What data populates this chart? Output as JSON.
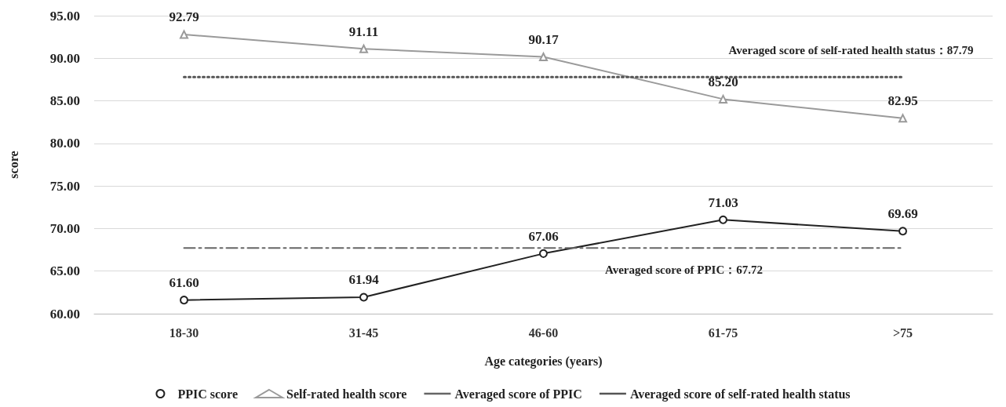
{
  "chart_data": {
    "type": "line",
    "xlabel": "Age categories (years)",
    "ylabel": "score",
    "categories": [
      "18-30",
      "31-45",
      "46-60",
      "61-75",
      ">75"
    ],
    "series": [
      {
        "name": "PPIC score",
        "color": "#222222",
        "marker": "circle",
        "line_style": "solid",
        "values": [
          61.6,
          61.94,
          67.06,
          71.03,
          69.69
        ],
        "value_labels": [
          "61.60",
          "61.94",
          "67.06",
          "71.03",
          "69.69"
        ]
      },
      {
        "name": "Self-rated health score",
        "color": "#9a9a9a",
        "marker": "triangle",
        "line_style": "solid",
        "values": [
          92.79,
          91.11,
          90.17,
          85.2,
          82.95
        ],
        "value_labels": [
          "92.79",
          "91.11",
          "90.17",
          "85.20",
          "82.95"
        ]
      },
      {
        "name": "Averaged score of PPIC",
        "color": "#666666",
        "marker": "none",
        "line_style": "dashed",
        "values": [
          67.72,
          67.72,
          67.72,
          67.72,
          67.72
        ]
      },
      {
        "name": "Averaged score of self-rated health status",
        "color": "#555555",
        "marker": "none",
        "line_style": "dotted",
        "values": [
          87.79,
          87.79,
          87.79,
          87.79,
          87.79
        ]
      }
    ],
    "annotations": [
      {
        "text": "Averaged score of PPIC：67.72",
        "x": "61-75",
        "y": 67.72
      },
      {
        "text": "Averaged score of self-rated health status：87.79",
        "x": ">75",
        "y": 87.79
      }
    ],
    "ylim": [
      60,
      95
    ],
    "yticks": [
      {
        "value": 60,
        "label": "60.00"
      },
      {
        "value": 65,
        "label": "65.00"
      },
      {
        "value": 70,
        "label": "70.00"
      },
      {
        "value": 75,
        "label": "75.00"
      },
      {
        "value": 80,
        "label": "80.00"
      },
      {
        "value": 85,
        "label": "85.00"
      },
      {
        "value": 90,
        "label": "90.00"
      },
      {
        "value": 95,
        "label": "95.00"
      }
    ],
    "grid": "y",
    "legend": "bottom"
  }
}
